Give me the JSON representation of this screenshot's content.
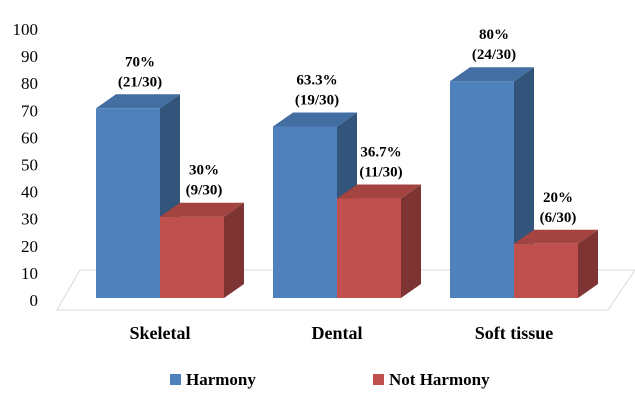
{
  "chart_data": {
    "type": "bar",
    "style": "3d-clustered-column",
    "categories": [
      "Skeletal",
      "Dental",
      "Soft tissue"
    ],
    "series": [
      {
        "name": "Harmony",
        "color": "#4F81BD",
        "values": [
          70,
          63.3,
          80
        ],
        "labels": [
          [
            "70%",
            "(21/30)"
          ],
          [
            "63.3%",
            "(19/30)"
          ],
          [
            "80%",
            "(24/30)"
          ]
        ]
      },
      {
        "name": "Not Harmony",
        "color": "#C0504D",
        "values": [
          30,
          36.7,
          20
        ],
        "labels": [
          [
            "30%",
            "(9/30)"
          ],
          [
            "36.7%",
            "(11/30)"
          ],
          [
            "20%",
            "(6/30)"
          ]
        ]
      }
    ],
    "yticks": [
      "0",
      "10",
      "20",
      "30",
      "40",
      "50",
      "60",
      "70",
      "80",
      "90",
      "100"
    ],
    "ylim": [
      0,
      100
    ],
    "grid": false,
    "legend": "bottom",
    "title": "",
    "xlabel": "",
    "ylabel": ""
  }
}
